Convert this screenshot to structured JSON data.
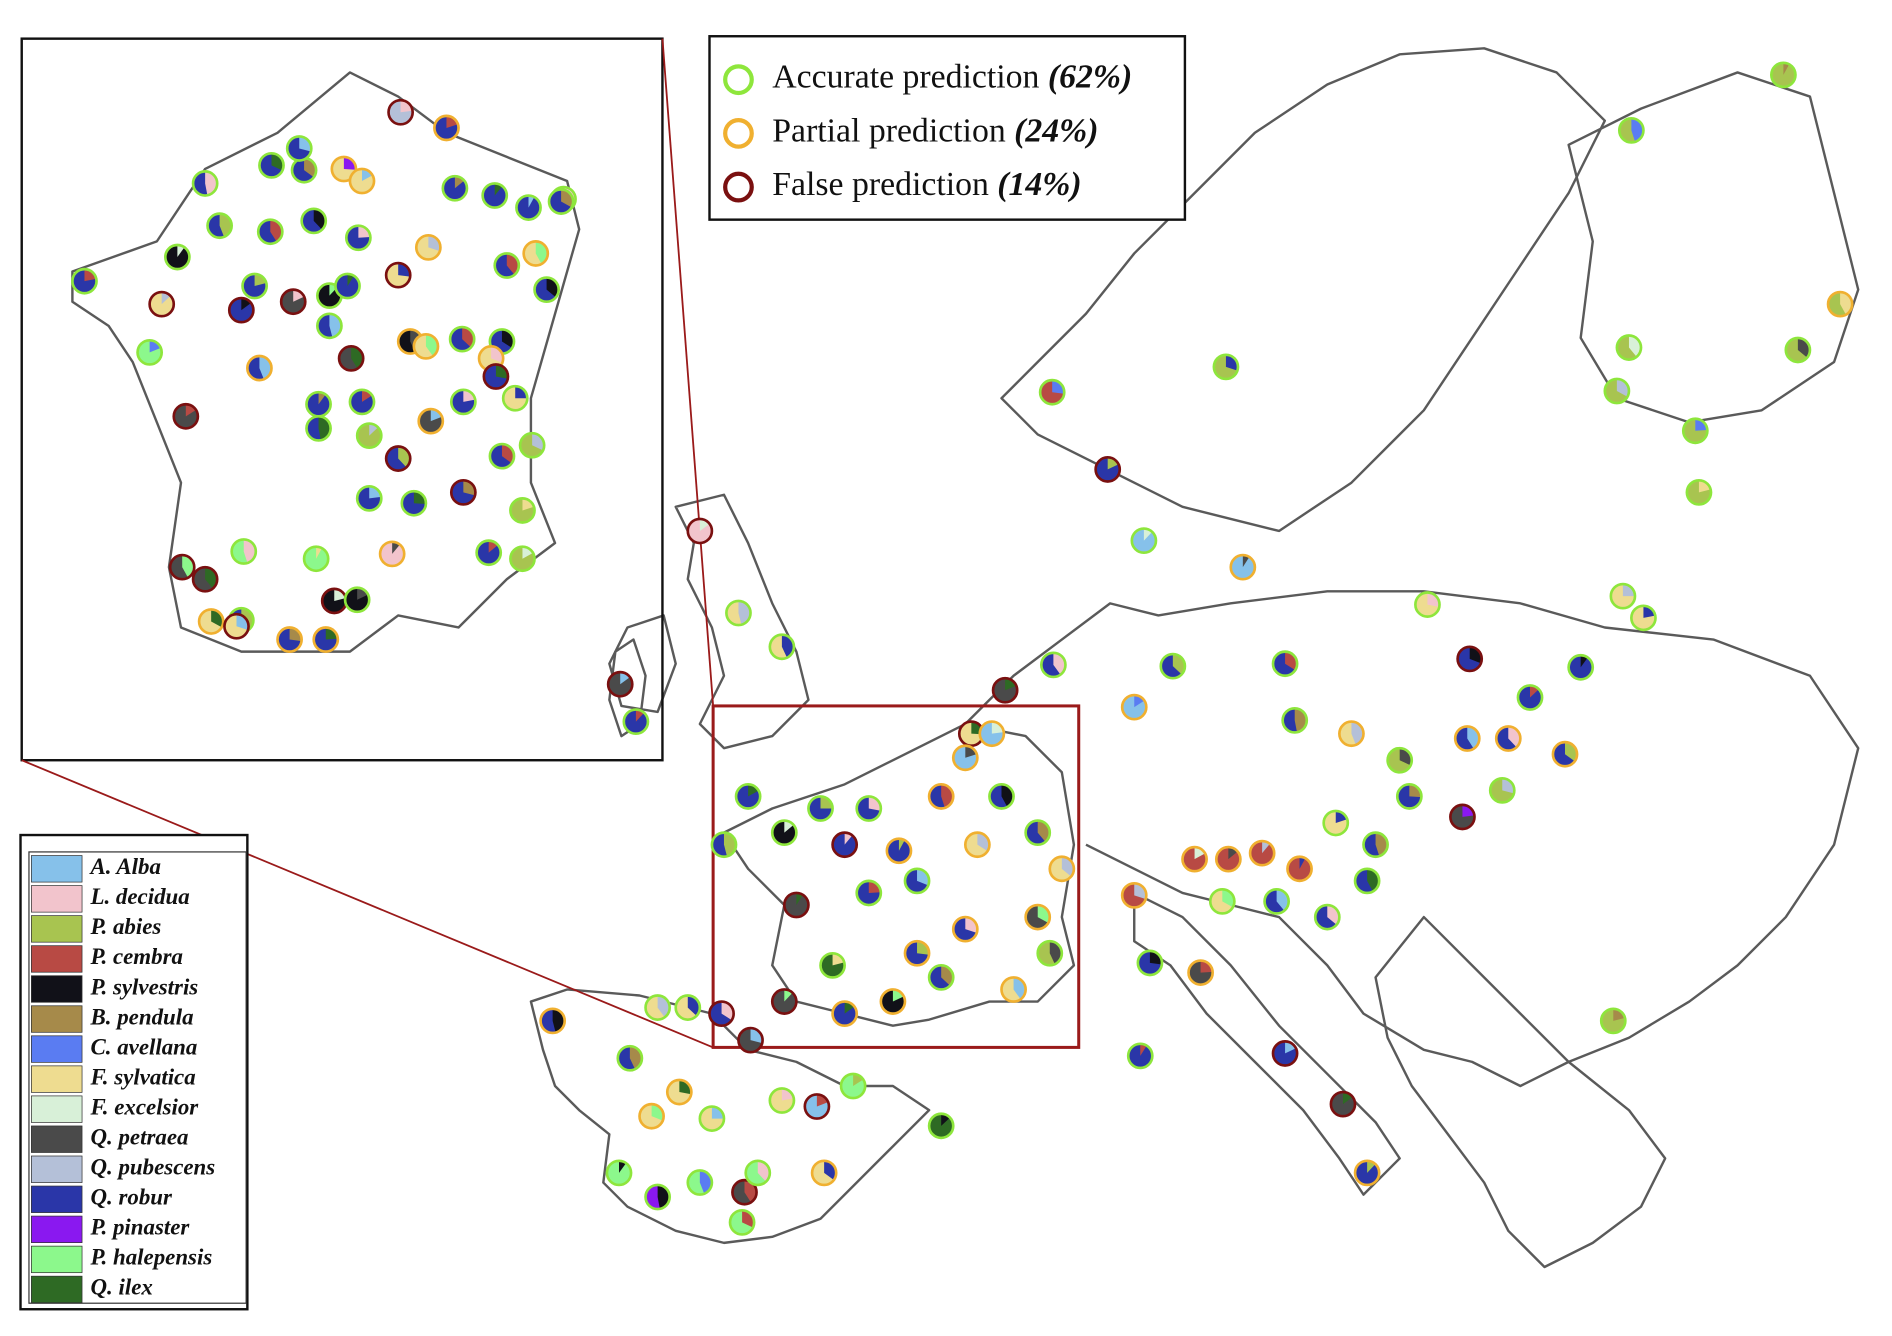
{
  "prediction_legend": [
    {
      "label": "Accurate prediction",
      "share": "(62%)",
      "color": "#8ee63c"
    },
    {
      "label": "Partial prediction",
      "share": "(24%)",
      "color": "#f0b030"
    },
    {
      "label": "False prediction",
      "share": "(14%)",
      "color": "#7a1010"
    }
  ],
  "species_legend": [
    {
      "label": "A. Alba",
      "color": "#86c1ea"
    },
    {
      "label": "L. decidua",
      "color": "#f2c4cc"
    },
    {
      "label": "P. abies",
      "color": "#a8c450"
    },
    {
      "label": "P. cembra",
      "color": "#b84a44"
    },
    {
      "label": "P. sylvestris",
      "color": "#111118"
    },
    {
      "label": "B. pendula",
      "color": "#a68a4a"
    },
    {
      "label": "C. avellana",
      "color": "#5a7cf2"
    },
    {
      "label": "F. sylvatica",
      "color": "#eedc90"
    },
    {
      "label": "F. excelsior",
      "color": "#d8f0d8"
    },
    {
      "label": "Q. petraea",
      "color": "#4a4a4a"
    },
    {
      "label": "Q. pubescens",
      "color": "#b4c0d8"
    },
    {
      "label": "Q. robur",
      "color": "#2a36a8"
    },
    {
      "label": "P. pinaster",
      "color": "#8a18f0"
    },
    {
      "label": "P. halepensis",
      "color": "#8cf88c"
    },
    {
      "label": "Q. ilex",
      "color": "#2e6a24"
    }
  ]
}
